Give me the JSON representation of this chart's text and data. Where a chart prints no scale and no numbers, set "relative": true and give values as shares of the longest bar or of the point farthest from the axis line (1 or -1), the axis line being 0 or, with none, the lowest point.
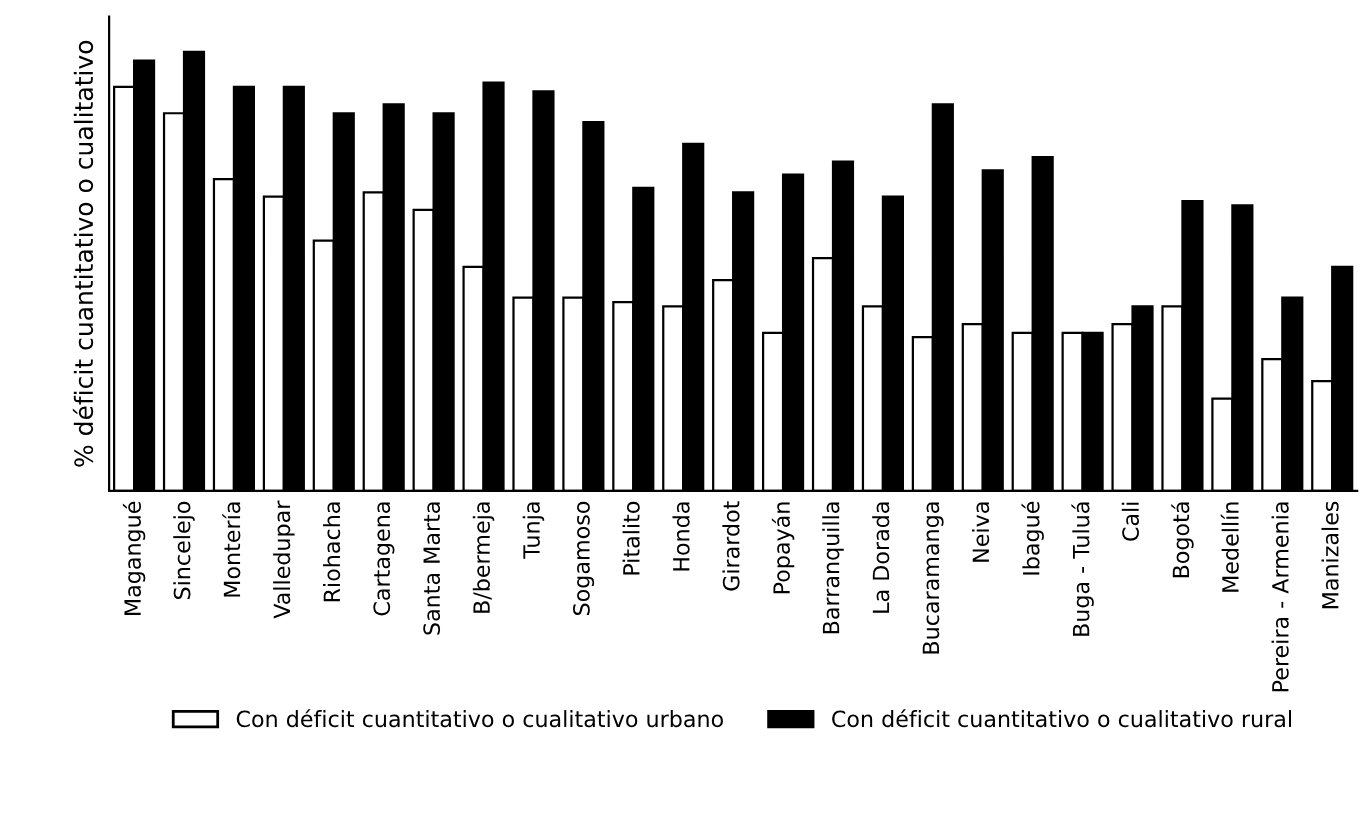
{
  "chart_data": {
    "type": "bar",
    "relative": true,
    "ylabel": "% déficit cuantitativo o cualitativo",
    "categories": [
      "Magangué",
      "Sincelejo",
      "Montería",
      "Valledupar",
      "Riohacha",
      "Cartagena",
      "Santa Marta",
      "B/bermeja",
      "Tunja",
      "Sogamoso",
      "Pitalito",
      "Honda",
      "Girardot",
      "Popayán",
      "Barranquilla",
      "La Dorada",
      "Bucaramanga",
      "Neiva",
      "Ibagué",
      "Buga - Tuluá",
      "Cali",
      "Bogotá",
      "Medellín",
      "Pereira - Armenia",
      "Manizales"
    ],
    "series": [
      {
        "name": "Con déficit cuantitativo o cualitativo urbano",
        "color": "#ffffff",
        "values": [
          0.92,
          0.86,
          0.71,
          0.67,
          0.57,
          0.68,
          0.64,
          0.51,
          0.44,
          0.44,
          0.43,
          0.42,
          0.48,
          0.36,
          0.53,
          0.42,
          0.35,
          0.38,
          0.36,
          0.36,
          0.38,
          0.42,
          0.21,
          0.3,
          0.25
        ]
      },
      {
        "name": "Con déficit cuantitativo o cualitativo rural",
        "color": "#000000",
        "values": [
          0.98,
          1.0,
          0.92,
          0.92,
          0.86,
          0.88,
          0.86,
          0.93,
          0.91,
          0.84,
          0.69,
          0.79,
          0.68,
          0.72,
          0.75,
          0.67,
          0.88,
          0.73,
          0.76,
          0.36,
          0.42,
          0.66,
          0.65,
          0.44,
          0.51
        ]
      }
    ],
    "legend": "bottom"
  }
}
